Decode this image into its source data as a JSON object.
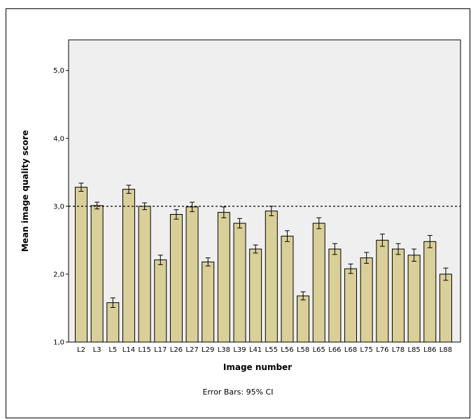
{
  "chart_data": {
    "type": "bar",
    "title": "",
    "xlabel": "Image number",
    "ylabel": "Mean image quality score",
    "footnote": "Error Bars: 95% CI",
    "categories": [
      "L2",
      "L3",
      "L5",
      "L14",
      "L15",
      "L17",
      "L26",
      "L27",
      "L29",
      "L38",
      "L39",
      "L41",
      "L55",
      "L56",
      "L58",
      "L65",
      "L66",
      "L68",
      "L75",
      "L76",
      "L78",
      "L85",
      "L86",
      "L88"
    ],
    "values": [
      3.28,
      3.01,
      1.58,
      3.25,
      3.0,
      2.21,
      2.88,
      2.99,
      2.18,
      2.91,
      2.75,
      2.37,
      2.93,
      2.56,
      1.68,
      2.75,
      2.37,
      2.08,
      2.24,
      2.5,
      2.37,
      2.28,
      2.48,
      2.0
    ],
    "ci_half_width": [
      0.06,
      0.05,
      0.07,
      0.06,
      0.05,
      0.07,
      0.07,
      0.07,
      0.06,
      0.08,
      0.07,
      0.06,
      0.07,
      0.08,
      0.06,
      0.08,
      0.08,
      0.07,
      0.08,
      0.09,
      0.08,
      0.09,
      0.09,
      0.09
    ],
    "yticks": [
      "1,0",
      "2,0",
      "3,0",
      "4,0",
      "5,0"
    ],
    "ytick_values": [
      1,
      2,
      3,
      4,
      5
    ],
    "ylim": [
      1,
      5.45
    ],
    "reference_line": 3.0,
    "grid": false,
    "colors": {
      "bar_fill": "#d9cf99",
      "plot_bg": "#efefef",
      "bar_stroke": "#000000",
      "reference": "#000000"
    }
  }
}
